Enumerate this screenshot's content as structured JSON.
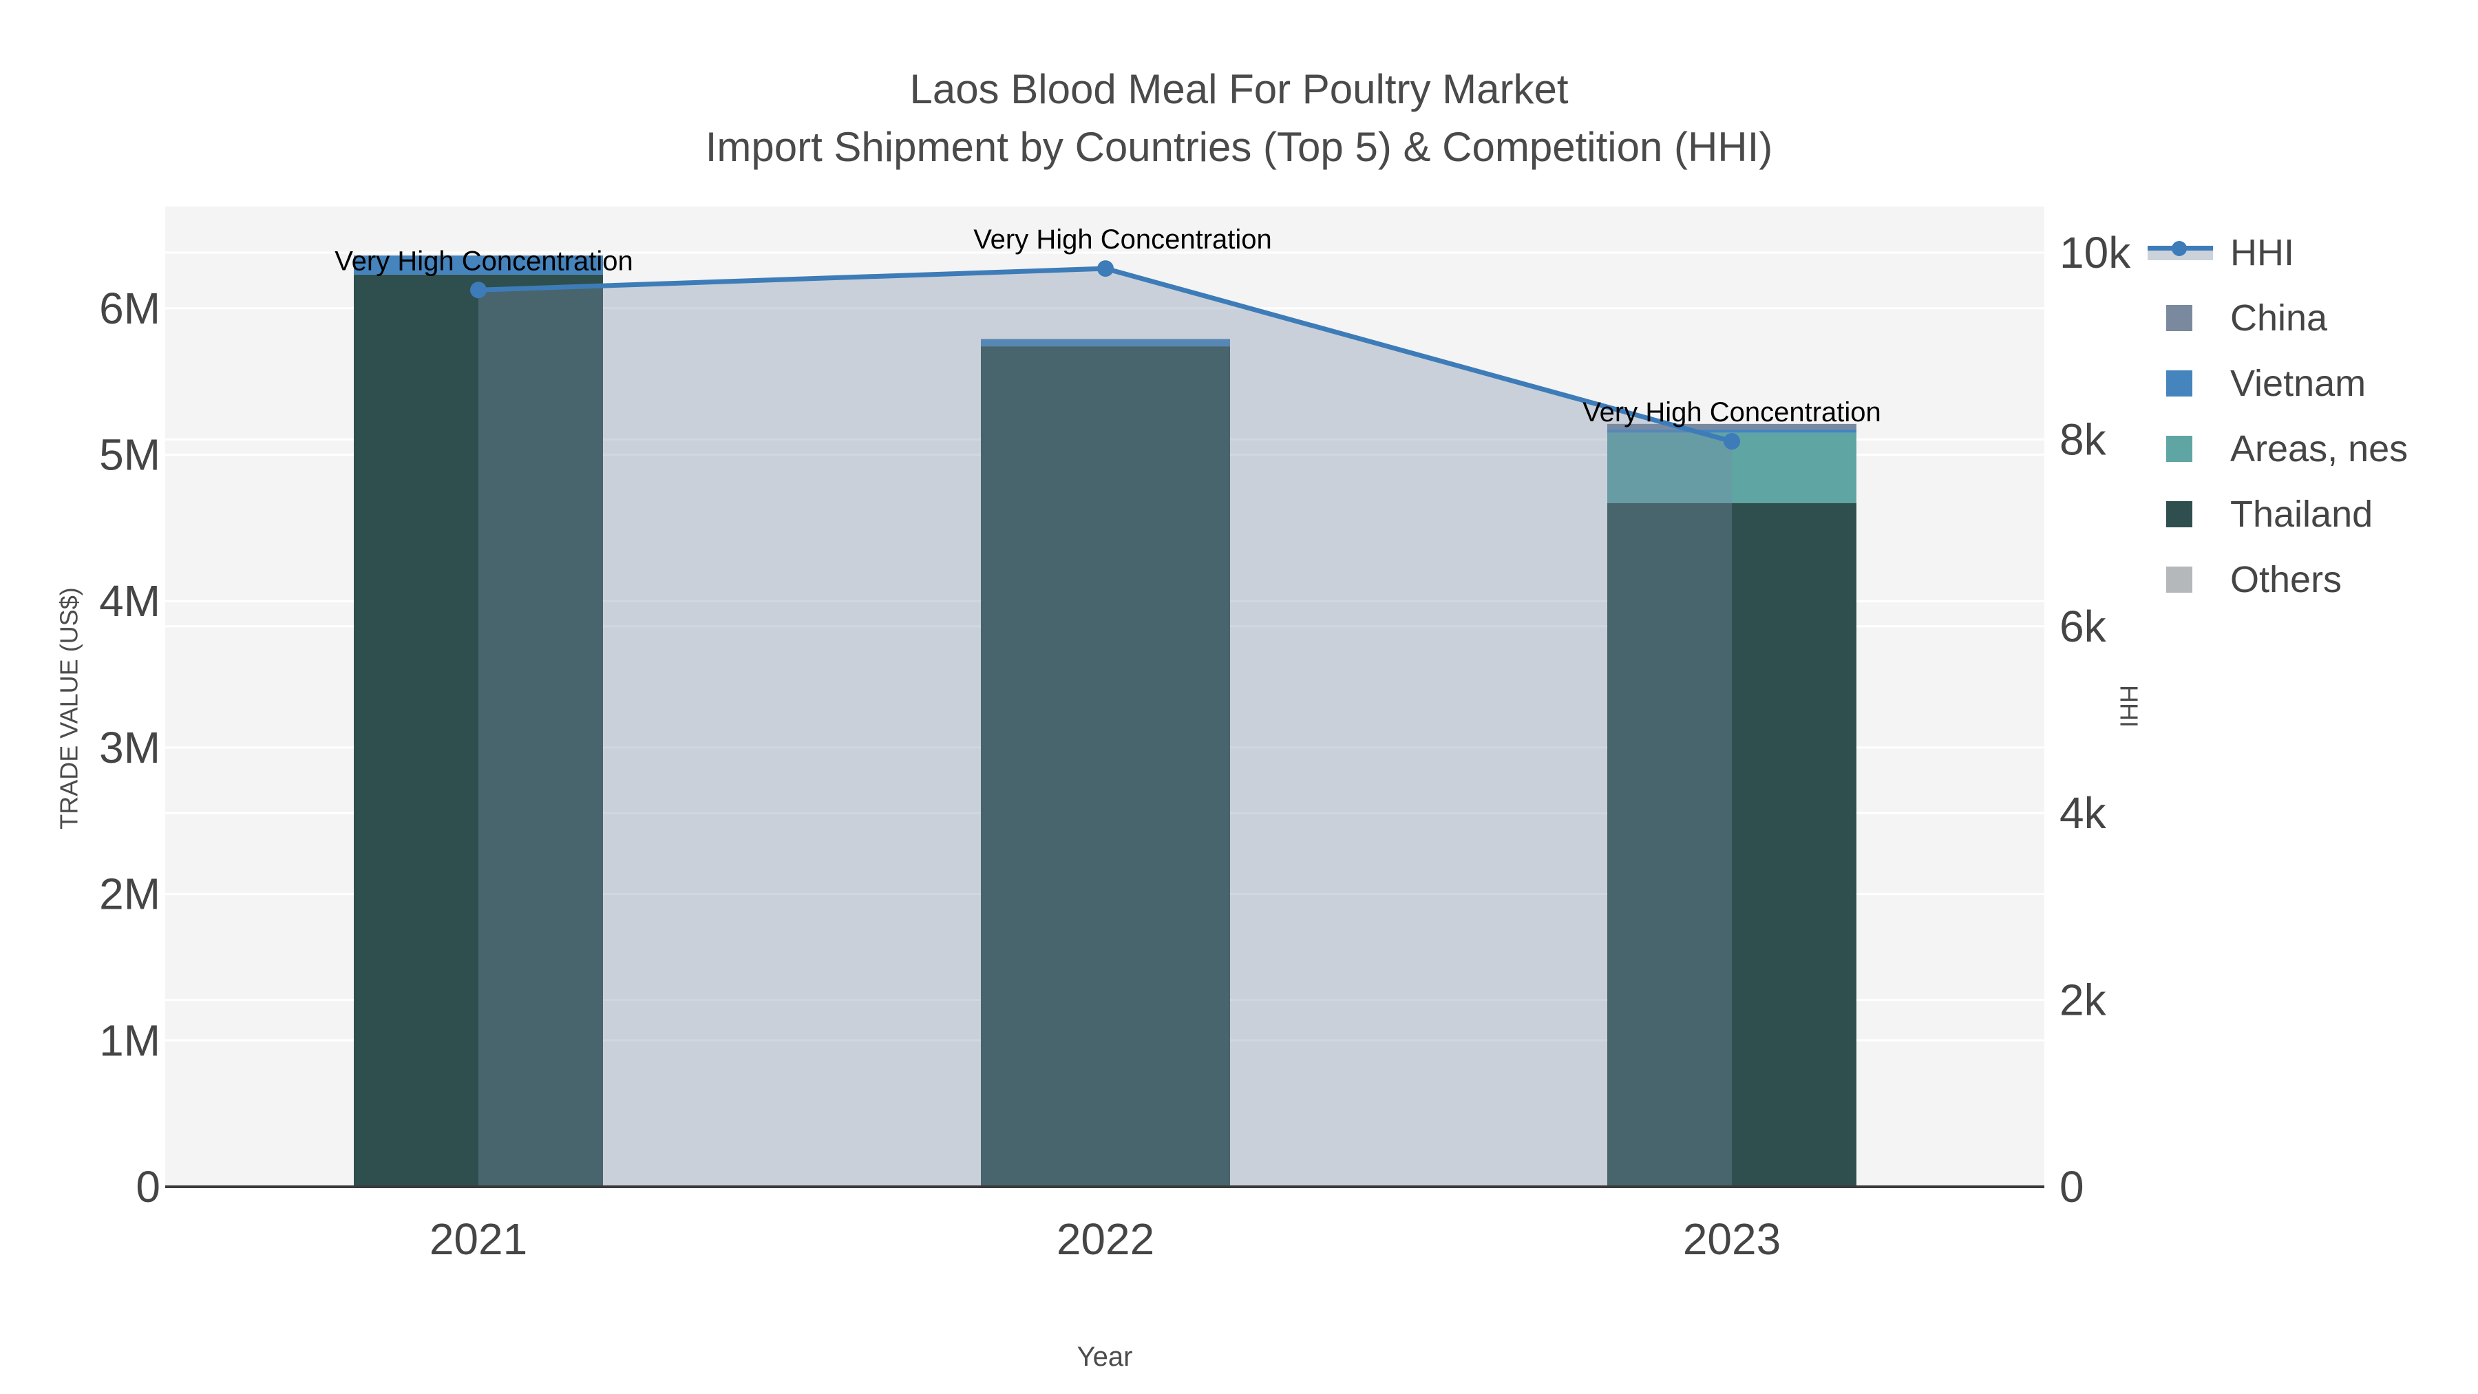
{
  "title": {
    "line1": "Laos Blood Meal For Poultry Market",
    "line2": "Import Shipment by Countries (Top 5) & Competition (HHI)"
  },
  "axes": {
    "x": {
      "title": "Year",
      "tick_labels": [
        "2021",
        "2022",
        "2023"
      ]
    },
    "y_left": {
      "title": "TRADE VALUE (US$)",
      "tick_labels": [
        "0",
        "1M",
        "2M",
        "3M",
        "4M",
        "5M",
        "6M"
      ],
      "tick_values": [
        0,
        1000000,
        2000000,
        3000000,
        4000000,
        5000000,
        6000000
      ]
    },
    "y_right": {
      "title": "HHI",
      "tick_labels": [
        "0",
        "2k",
        "4k",
        "6k",
        "8k",
        "10k"
      ],
      "tick_values": [
        0,
        2000,
        4000,
        6000,
        8000,
        10000
      ]
    }
  },
  "legend": {
    "items": [
      {
        "label": "HHI",
        "kind": "line",
        "line_color": "#3d7cb8",
        "band_color": "#ccd2da"
      },
      {
        "label": "China",
        "kind": "swatch",
        "color": "#7b899e"
      },
      {
        "label": "Vietnam",
        "kind": "swatch",
        "color": "#4684bd"
      },
      {
        "label": "Areas, nes",
        "kind": "swatch",
        "color": "#5fa5a4"
      },
      {
        "label": "Thailand",
        "kind": "swatch",
        "color": "#2e4f4e"
      },
      {
        "label": "Others",
        "kind": "swatch",
        "color": "#b4b8ba"
      }
    ]
  },
  "chart_data": {
    "type": "bar",
    "subtype": "stacked-bar-with-secondary-axis-line",
    "title": "Laos Blood Meal For Poultry Market Import Shipment by Countries (Top 5) & Competition (HHI)",
    "xlabel": "Year",
    "ylabel_left": "TRADE VALUE (US$)",
    "ylabel_right": "HHI",
    "categories": [
      "2021",
      "2022",
      "2023"
    ],
    "series": [
      {
        "name": "Thailand",
        "axis": "left",
        "color": "#2e4f4e",
        "values": [
          6230000,
          5740000,
          4670000
        ]
      },
      {
        "name": "Areas, nes",
        "axis": "left",
        "color": "#5fa5a4",
        "values": [
          0,
          0,
          480000
        ]
      },
      {
        "name": "Vietnam",
        "axis": "left",
        "color": "#4684bd",
        "values": [
          130000,
          50000,
          25000
        ]
      },
      {
        "name": "China",
        "axis": "left",
        "color": "#7b899e",
        "values": [
          0,
          0,
          35000
        ]
      },
      {
        "name": "Others",
        "axis": "left",
        "color": "#b4b8ba",
        "values": [
          0,
          0,
          0
        ]
      },
      {
        "name": "HHI",
        "type": "line",
        "axis": "right",
        "color": "#3d7cb8",
        "fill_color": "rgba(120,140,165,0.35)",
        "marker": "circle",
        "values": [
          9600,
          9830,
          7980
        ]
      }
    ],
    "annotations": [
      {
        "text": "Very High Concentration",
        "category": "2021"
      },
      {
        "text": "Very High Concentration",
        "category": "2022"
      },
      {
        "text": "Very High Concentration",
        "category": "2023"
      }
    ],
    "ylim_left": [
      0,
      6690000
    ],
    "ylim_right": [
      0,
      10490
    ],
    "grid": true,
    "plot_background": "#f4f4f4",
    "legend_position": "right"
  }
}
